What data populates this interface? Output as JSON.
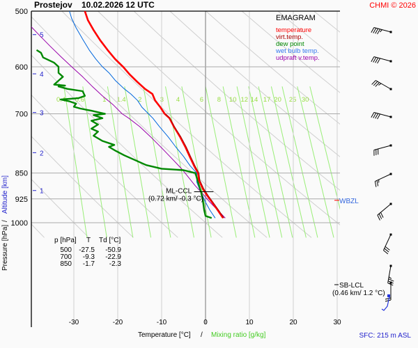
{
  "header": {
    "station": "Prostejov",
    "datetime": "10.02.2026 12 UTC",
    "copyright": "CHMI © 2026"
  },
  "chart_data": {
    "type": "line",
    "title": "Prostejov    10.02.2026 12 UTC",
    "diagram_type": "EMAGRAM",
    "xlabel": "Temperature [°C]",
    "xlabel_sep": "/",
    "xlabel2": "Mixing ratio [g/kg]",
    "ylabel": "Pressure [hPa]",
    "ylabel_sep": "/",
    "ylabel2": "Altitude [km]",
    "xlim": [
      -38,
      30
    ],
    "ylim_hpa": [
      1050,
      500
    ],
    "x_ticks": [
      -30,
      -20,
      -10,
      0,
      10,
      20,
      30
    ],
    "y_ticks_hpa": [
      500,
      600,
      700,
      850,
      925,
      1000
    ],
    "altitude_ticks_km": [
      {
        "km": 1,
        "hpa": 900
      },
      {
        "km": 2,
        "hpa": 795
      },
      {
        "km": 3,
        "hpa": 697
      },
      {
        "km": 4,
        "hpa": 614
      },
      {
        "km": 5,
        "hpa": 540
      }
    ],
    "mixing_ratio_labels": [
      "0.4",
      "0.6",
      "1",
      "1.4",
      "2",
      "3",
      "4",
      "6",
      "8",
      "10",
      "12",
      "14",
      "17",
      "20",
      "25",
      "30"
    ],
    "mixing_ratio_values": [
      0.4,
      0.6,
      1,
      1.4,
      2,
      3,
      4,
      6,
      8,
      10,
      12,
      14,
      17,
      20,
      25,
      30
    ],
    "legend": {
      "placement": "top-right",
      "title": "EMAGRAM",
      "items": [
        {
          "label": "temperature",
          "color": "#ff0000"
        },
        {
          "label": "virt.temp.",
          "color": "#aa0000"
        },
        {
          "label": "dew point",
          "color": "#008800"
        },
        {
          "label": "wet bulb temp.",
          "color": "#0066dd"
        },
        {
          "label": "udpraft v.temp.",
          "color": "#9900aa"
        }
      ]
    },
    "series": [
      {
        "name": "temperature",
        "color": "#ff0000",
        "points": [
          [
            4.0,
            985
          ],
          [
            2.8,
            960
          ],
          [
            1.5,
            935
          ],
          [
            0.4,
            915
          ],
          [
            -0.6,
            895
          ],
          [
            -1.5,
            870
          ],
          [
            -1.7,
            850
          ],
          [
            -2.6,
            830
          ],
          [
            -3.6,
            805
          ],
          [
            -4.6,
            780
          ],
          [
            -5.8,
            755
          ],
          [
            -7.2,
            730
          ],
          [
            -8.2,
            710
          ],
          [
            -9.3,
            700
          ],
          [
            -10.3,
            685
          ],
          [
            -11.5,
            670
          ],
          [
            -12.1,
            656
          ],
          [
            -13.8,
            645
          ],
          [
            -15.6,
            630
          ],
          [
            -17.3,
            615
          ],
          [
            -18.8,
            600
          ],
          [
            -20.6,
            585
          ],
          [
            -22.3,
            568
          ],
          [
            -24.0,
            550
          ],
          [
            -25.5,
            532
          ],
          [
            -26.8,
            515
          ],
          [
            -27.5,
            500
          ]
        ]
      },
      {
        "name": "virt.temp.",
        "color": "#aa0000",
        "points": [
          [
            4.2,
            985
          ],
          [
            3.0,
            960
          ],
          [
            1.7,
            935
          ],
          [
            0.6,
            915
          ],
          [
            -0.4,
            895
          ],
          [
            -1.3,
            870
          ],
          [
            -1.5,
            850
          ],
          [
            -2.4,
            830
          ],
          [
            -3.4,
            805
          ],
          [
            -4.4,
            780
          ],
          [
            -5.6,
            755
          ],
          [
            -7.1,
            730
          ],
          [
            -8.1,
            710
          ],
          [
            -9.2,
            700
          ]
        ]
      },
      {
        "name": "dew point",
        "color": "#008800",
        "points": [
          [
            1.4,
            985
          ],
          [
            0.0,
            978
          ],
          [
            -0.3,
            960
          ],
          [
            -0.6,
            930
          ],
          [
            -1.0,
            905
          ],
          [
            -1.6,
            880
          ],
          [
            -2.3,
            850
          ],
          [
            -5.0,
            842
          ],
          [
            -10.0,
            838
          ],
          [
            -13.5,
            828
          ],
          [
            -16.0,
            815
          ],
          [
            -18.5,
            802
          ],
          [
            -20.5,
            790
          ],
          [
            -22.0,
            780
          ],
          [
            -20.8,
            775
          ],
          [
            -23.5,
            765
          ],
          [
            -25.5,
            752
          ],
          [
            -24.5,
            742
          ],
          [
            -26.0,
            735
          ],
          [
            -24.5,
            725
          ],
          [
            -26.0,
            716
          ],
          [
            -23.5,
            710
          ],
          [
            -25.5,
            703
          ],
          [
            -22.9,
            700
          ],
          [
            -26.0,
            693
          ],
          [
            -28.5,
            688
          ],
          [
            -30.0,
            684
          ],
          [
            -29.5,
            677
          ],
          [
            -31.0,
            672
          ],
          [
            -33.0,
            668
          ],
          [
            -29.0,
            665
          ],
          [
            -27.5,
            660
          ],
          [
            -28.0,
            650
          ],
          [
            -31.5,
            645
          ],
          [
            -33.5,
            640
          ],
          [
            -32.0,
            638
          ],
          [
            -34.5,
            636
          ],
          [
            -33.5,
            628
          ],
          [
            -32.5,
            620
          ],
          [
            -33.5,
            612
          ],
          [
            -33.5,
            600
          ],
          [
            -34.5,
            592
          ],
          [
            -37.0,
            582
          ],
          [
            -37.5,
            573
          ],
          [
            -38.5,
            568
          ]
        ]
      },
      {
        "name": "wet bulb temp.",
        "color": "#0066dd",
        "points": [
          [
            2.2,
            985
          ],
          [
            1.0,
            960
          ],
          [
            0.0,
            935
          ],
          [
            -0.7,
            915
          ],
          [
            -1.4,
            895
          ],
          [
            -2.0,
            875
          ],
          [
            -2.0,
            850
          ],
          [
            -3.5,
            830
          ],
          [
            -5.0,
            805
          ],
          [
            -6.8,
            780
          ],
          [
            -8.5,
            755
          ],
          [
            -10.5,
            730
          ],
          [
            -12.0,
            710
          ],
          [
            -13.0,
            700
          ],
          [
            -14.5,
            685
          ],
          [
            -15.5,
            670
          ],
          [
            -17.0,
            656
          ],
          [
            -18.5,
            645
          ],
          [
            -20.5,
            628
          ],
          [
            -22.0,
            612
          ],
          [
            -23.5,
            600
          ],
          [
            -25.0,
            585
          ],
          [
            -26.5,
            568
          ],
          [
            -28.0,
            548
          ],
          [
            -29.5,
            528
          ],
          [
            -30.5,
            512
          ],
          [
            -31.0,
            500
          ]
        ]
      },
      {
        "name": "udpraft v.temp.",
        "color": "#9900aa",
        "points": [
          [
            4.5,
            985
          ],
          [
            2.8,
            960
          ],
          [
            1.0,
            935
          ],
          [
            -0.5,
            912
          ],
          [
            -2.4,
            885
          ],
          [
            -4.0,
            860
          ],
          [
            -5.3,
            840
          ],
          [
            -7.3,
            815
          ],
          [
            -9.8,
            785
          ],
          [
            -12.5,
            755
          ],
          [
            -15.0,
            730
          ],
          [
            -17.5,
            710
          ],
          [
            -19.0,
            700
          ],
          [
            -21.0,
            680
          ],
          [
            -23.5,
            660
          ],
          [
            -25.8,
            640
          ],
          [
            -28.0,
            620
          ],
          [
            -30.5,
            600
          ],
          [
            -33.0,
            580
          ],
          [
            -35.5,
            560
          ],
          [
            -38.0,
            540
          ],
          [
            -40.5,
            520
          ],
          [
            -43.0,
            502
          ]
        ]
      }
    ],
    "table": {
      "headers": [
        "p [hPa]",
        "T",
        "Td [°C]"
      ],
      "rows": [
        [
          "500",
          "-27.5",
          "-50.9"
        ],
        [
          "700",
          "-9.3",
          "-22.9"
        ],
        [
          "850",
          "-1.7",
          "-2.3"
        ]
      ]
    },
    "annotations": [
      {
        "label": "ML-CCL",
        "sub": "(0.72 km/ -0.3 °C)",
        "hpa": 912,
        "temp": -0.3
      },
      {
        "label": "WBZL",
        "hpa": 925,
        "color": "#3366dd"
      },
      {
        "label": "SB-LCL",
        "sub": "(0.46 km/ 1.2 °C)",
        "hpa": 955,
        "temp": 1.2
      }
    ],
    "wind_barbs": [
      {
        "hpa": 520,
        "dir_deg": 285,
        "speed_kt": 45
      },
      {
        "hpa": 560,
        "dir_deg": 285,
        "speed_kt": 40
      },
      {
        "hpa": 600,
        "dir_deg": 300,
        "speed_kt": 35
      },
      {
        "hpa": 640,
        "dir_deg": 285,
        "speed_kt": 40
      },
      {
        "hpa": 690,
        "dir_deg": 255,
        "speed_kt": 30
      },
      {
        "hpa": 740,
        "dir_deg": 245,
        "speed_kt": 25
      },
      {
        "hpa": 790,
        "dir_deg": 230,
        "speed_kt": 30
      },
      {
        "hpa": 850,
        "dir_deg": 205,
        "speed_kt": 30
      },
      {
        "hpa": 910,
        "dir_deg": 190,
        "speed_kt": 35
      },
      {
        "hpa": 960,
        "dir_deg": 180,
        "speed_kt": 20
      }
    ],
    "surface": "SFC: 215 m ASL"
  }
}
